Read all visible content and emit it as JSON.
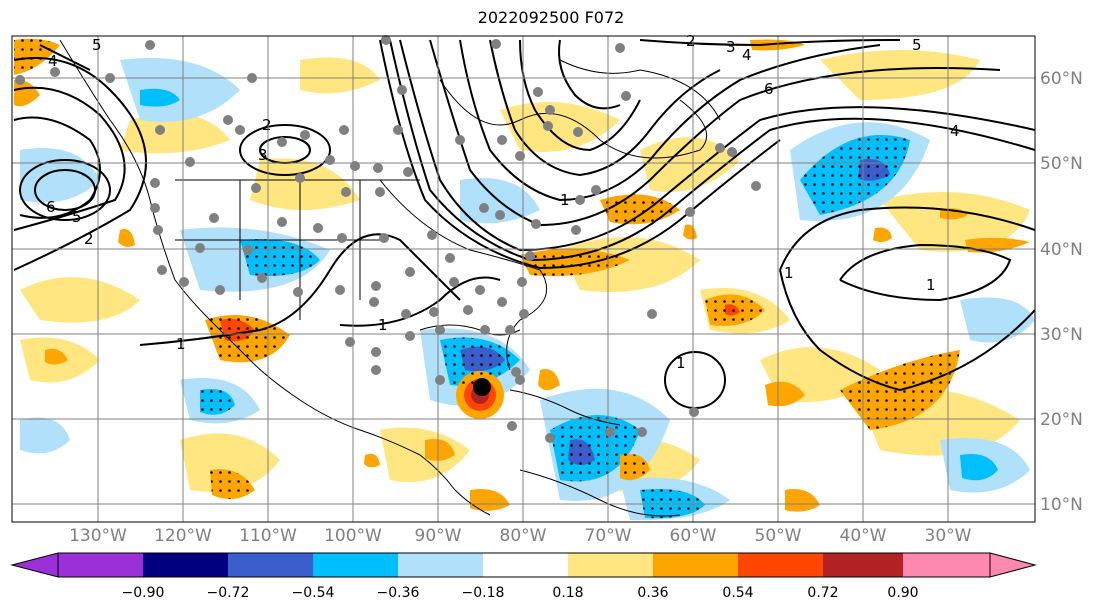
{
  "title": "2022092500 F072",
  "longitude_labels": [
    "130°W",
    "120°W",
    "110°W",
    "100°W",
    "90°W",
    "80°W",
    "70°W",
    "60°W",
    "50°W",
    "40°W",
    "30°W"
  ],
  "latitude_labels": [
    "60°N",
    "50°N",
    "40°N",
    "30°N",
    "20°N",
    "10°N"
  ],
  "colorbar": {
    "tick_labels": [
      "−0.90",
      "−0.72",
      "−0.54",
      "−0.36",
      "−0.18",
      "0.18",
      "0.36",
      "0.54",
      "0.72",
      "0.90"
    ],
    "colors": [
      "#9b30d9",
      "#000080",
      "#3a5fcd",
      "#00bfff",
      "#b0e0fa",
      "#ffffff",
      "#ffe680",
      "#ffa500",
      "#ff4500",
      "#b22222",
      "#ff88b0"
    ]
  },
  "contour_labels": [
    "4",
    "5",
    "6",
    "5",
    "2",
    "2",
    "3",
    "4",
    "5",
    "6",
    "4",
    "1",
    "1",
    "1",
    "1",
    "1",
    "1",
    "2",
    "3"
  ],
  "colors": {
    "land_outline": "#000000",
    "gridline": "#808080",
    "station_marker": "#808080",
    "storm_marker": "#000000"
  }
}
